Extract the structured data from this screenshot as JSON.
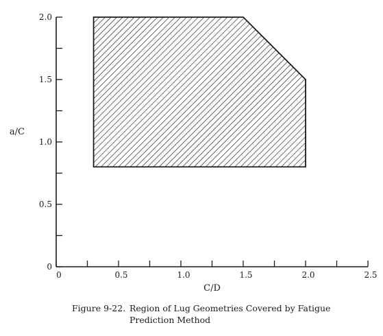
{
  "chart_data": {
    "type": "area",
    "title": "",
    "xlabel": "C/D",
    "ylabel": "a/C",
    "xlim": [
      0,
      2.5
    ],
    "ylim": [
      0,
      2.0
    ],
    "x_ticks": [
      "0",
      "0.5",
      "1.0",
      "1.5",
      "2.0",
      "2.5"
    ],
    "y_ticks": [
      "0",
      "0.5",
      "1.0",
      "1.5",
      "2.0"
    ],
    "region": {
      "fill": "diagonal-hatch",
      "polygon": [
        {
          "x": 0.3,
          "y": 0.8
        },
        {
          "x": 0.3,
          "y": 2.0
        },
        {
          "x": 1.5,
          "y": 2.0
        },
        {
          "x": 2.0,
          "y": 1.5
        },
        {
          "x": 2.0,
          "y": 0.8
        }
      ]
    },
    "grid": false
  },
  "caption": {
    "number": "Figure 9-22.",
    "line1": "Region of Lug Geometries Covered by Fatigue",
    "line2": "Prediction Method"
  },
  "colors": {
    "ink": "#1a1a1a",
    "background": "#ffffff"
  }
}
